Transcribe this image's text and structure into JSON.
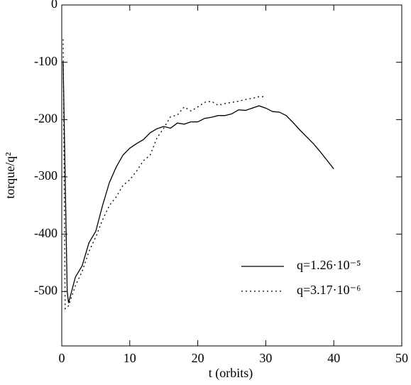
{
  "chart_data": {
    "type": "line",
    "x_label": "t (orbits)",
    "y_label": "torque/q²",
    "xlim": [
      0,
      50
    ],
    "xticks": [
      0,
      10,
      20,
      30,
      40,
      50
    ],
    "ylim": [
      -595,
      0
    ],
    "yticks": [
      0,
      -100,
      -200,
      -300,
      -400,
      -500
    ],
    "legend": "lower right",
    "series": [
      {
        "name": "q=1.26·10⁻⁵",
        "color": "#000000",
        "dash": "solid",
        "x": [
          0.2,
          0.8,
          1,
          2,
          3,
          4,
          5,
          6,
          7,
          8,
          9,
          10,
          11,
          12,
          13,
          14,
          15,
          16,
          17,
          18,
          19,
          20,
          21,
          22,
          23,
          24,
          25,
          26,
          27,
          28,
          29,
          30,
          31,
          32,
          33,
          34,
          35,
          36,
          37,
          38,
          39,
          40
        ],
        "values": [
          -100,
          -500,
          -520,
          -475,
          -455,
          -415,
          -395,
          -350,
          -310,
          -283,
          -262,
          -250,
          -242,
          -235,
          -223,
          -216,
          -212,
          -215,
          -206,
          -208,
          -204,
          -204,
          -198,
          -196,
          -193,
          -193,
          -190,
          -183,
          -184,
          -180,
          -176,
          -180,
          -186,
          -187,
          -193,
          -205,
          -218,
          -230,
          -242,
          -256,
          -271,
          -286
        ]
      },
      {
        "name": "q=3.17·10⁻⁶",
        "color": "#000000",
        "dash": "dotted",
        "x": [
          0.2,
          0.5,
          1,
          2,
          3,
          4,
          5,
          6,
          7,
          8,
          9,
          10,
          11,
          12,
          13,
          14,
          15,
          16,
          17,
          18,
          19,
          20,
          21,
          22,
          23,
          24,
          25,
          26,
          27,
          28,
          29,
          30
        ],
        "values": [
          -60,
          -530,
          -525,
          -490,
          -465,
          -430,
          -405,
          -375,
          -350,
          -335,
          -315,
          -305,
          -290,
          -272,
          -262,
          -232,
          -215,
          -195,
          -192,
          -178,
          -185,
          -178,
          -170,
          -168,
          -175,
          -172,
          -170,
          -168,
          -165,
          -163,
          -160,
          -160
        ]
      }
    ]
  }
}
